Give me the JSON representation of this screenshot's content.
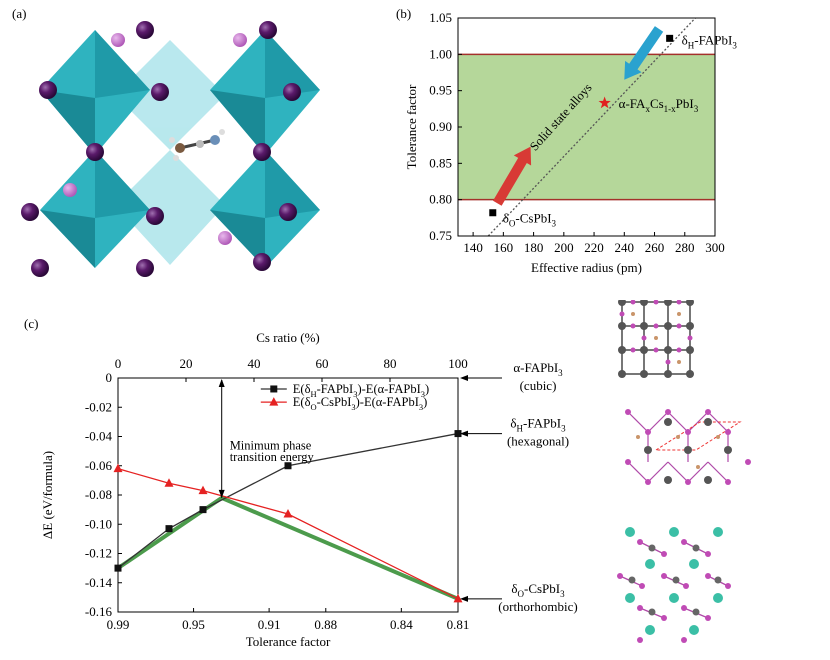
{
  "panel_a": {
    "label": "(a)"
  },
  "panel_b": {
    "label": "(b)"
  },
  "panel_c": {
    "label": "(c)"
  },
  "chart_data": [
    {
      "id": "b",
      "type": "scatter",
      "title": "",
      "xlabel": "Effective radius (pm)",
      "ylabel": "Tolerance factor",
      "xlim": [
        130,
        300
      ],
      "ylim": [
        0.75,
        1.05
      ],
      "xticks": [
        140,
        160,
        180,
        200,
        220,
        240,
        260,
        280,
        300
      ],
      "yticks": [
        0.75,
        0.8,
        0.85,
        0.9,
        0.95,
        1.0,
        1.05
      ],
      "band": {
        "from": 0.8,
        "to": 1.0
      },
      "trend_line": [
        [
          150,
          0.75
        ],
        [
          287,
          1.05
        ]
      ],
      "points": [
        {
          "name": "CsPbI3",
          "x": 153,
          "y": 0.782,
          "marker": "square"
        },
        {
          "name": "FAPbI3",
          "x": 270,
          "y": 1.022,
          "marker": "square"
        },
        {
          "name": "alloy",
          "x": 227,
          "y": 0.933,
          "marker": "star"
        }
      ],
      "annotations": {
        "top_right_main": "δ",
        "top_right_sub": "H",
        "top_right_tail": "-FAPbI",
        "top_right_sub2": "3",
        "alloy_pre": "α-FA",
        "alloy_x1": "x",
        "alloy_mid": "Cs",
        "alloy_x2": "1-x",
        "alloy_tail": "PbI",
        "alloy_3": "3",
        "bottom_main": "δ",
        "bottom_sub": "O",
        "bottom_tail": "-CsPbI",
        "bottom_3": "3",
        "diagonal": "Solid state alloys"
      }
    },
    {
      "id": "c",
      "type": "line",
      "xlabel": "Tolerance factor",
      "ylabel": "ΔE (eV/formula)",
      "x2label": "Cs ratio (%)",
      "xlim": [
        0.99,
        0.81
      ],
      "ylim": [
        -0.16,
        0
      ],
      "xticks": [
        0.99,
        0.95,
        0.91,
        0.88,
        0.84,
        0.81
      ],
      "x2ticks": [
        0,
        20,
        40,
        60,
        80,
        100
      ],
      "yticks": [
        0,
        -0.02,
        -0.04,
        -0.06,
        -0.08,
        -0.1,
        -0.12,
        -0.14,
        -0.16
      ],
      "series": [
        {
          "name": "E(δH-FAPbI3)-E(α-FAPbI3)",
          "marker": "square",
          "color": "#222222",
          "x": [
            0,
            15,
            25,
            50,
            100
          ],
          "values": [
            -0.13,
            -0.103,
            -0.09,
            -0.06,
            -0.038
          ]
        },
        {
          "name": "E(δO-CsPbI3)-E(α-FAPbI3)",
          "marker": "triangle",
          "color": "#e52222",
          "x": [
            0,
            15,
            25,
            50,
            100
          ],
          "values": [
            -0.062,
            -0.072,
            -0.077,
            -0.093,
            -0.151
          ]
        }
      ],
      "min_envelope": {
        "x": [
          0,
          30.5,
          100
        ],
        "values": [
          -0.13,
          -0.082,
          -0.151
        ],
        "color": "#2d8a2d"
      },
      "legend": {
        "s1_pre": "E(δ",
        "s1_sub": "H",
        "s1_mid": "-FAPbI",
        "s1_3": "3",
        "s1_tail": ")-E(α-FAPbI",
        "s1_3b": "3",
        "s1_end": ")",
        "s2_pre": "E(δ",
        "s2_sub": "O",
        "s2_mid": "-CsPbI",
        "s2_3": "3",
        "s2_tail": ")-E(α-FAPbI",
        "s2_3b": "3",
        "s2_end": ")"
      },
      "annotations": {
        "min_line1": "Minimum phase",
        "min_line2": "transition energy",
        "r1_a": "α-FAPbI",
        "r1_b": "3",
        "r1_c": "(cubic)",
        "r2_a": "δ",
        "r2_sub": "H",
        "r2_b": "-FAPbI",
        "r2_3": "3",
        "r2_c": "(hexagonal)",
        "r3_a": "δ",
        "r3_sub": "O",
        "r3_b": "-CsPbI",
        "r3_3": "3",
        "r3_c": "(orthorhombic)"
      }
    }
  ]
}
